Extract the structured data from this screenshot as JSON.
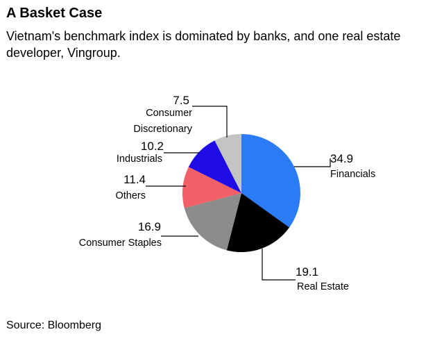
{
  "header": {
    "title": "A Basket Case",
    "subtitle": "Vietnam's benchmark index is dominated by banks, and one real estate developer, Vingroup."
  },
  "footer": {
    "source": "Source: Bloomberg"
  },
  "chart_data": {
    "type": "pie",
    "slices": [
      {
        "label": "Financials",
        "value": 34.9,
        "value_text": "34.9",
        "color": "#2c7bf6"
      },
      {
        "label": "Real Estate",
        "value": 19.1,
        "value_text": "19.1",
        "color": "#000000"
      },
      {
        "label": "Consumer Staples",
        "value": 16.9,
        "value_text": "16.9",
        "color": "#8c8c8c"
      },
      {
        "label": "Others",
        "value": 11.4,
        "value_text": "11.4",
        "color": "#f26067"
      },
      {
        "label": "Industrials",
        "value": 10.2,
        "value_text": "10.2",
        "color": "#1f0be6"
      },
      {
        "label": "Consumer Discretionary",
        "value": 7.5,
        "value_text": "7.5",
        "color": "#c4c4c4"
      }
    ]
  }
}
